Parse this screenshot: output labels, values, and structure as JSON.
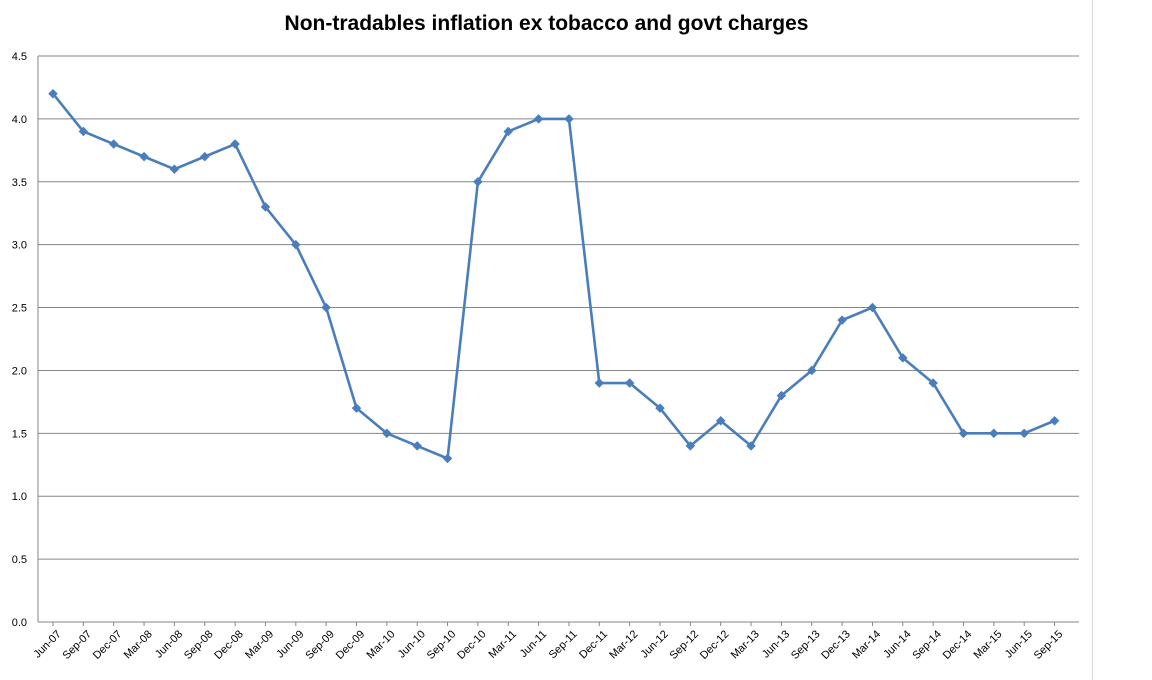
{
  "chart_data": {
    "type": "line",
    "title": "Non-tradables inflation ex tobacco and govt charges",
    "xlabel": "",
    "ylabel": "",
    "ylim": [
      0,
      4.5
    ],
    "yticks": [
      "0.0",
      "0.5",
      "1.0",
      "1.5",
      "2.0",
      "2.5",
      "3.0",
      "3.5",
      "4.0",
      "4.5"
    ],
    "grid": "horizontal",
    "legend": "none",
    "categories": [
      "Jun-07",
      "Sep-07",
      "Dec-07",
      "Mar-08",
      "Jun-08",
      "Sep-08",
      "Dec-08",
      "Mar-09",
      "Jun-09",
      "Sep-09",
      "Dec-09",
      "Mar-10",
      "Jun-10",
      "Sep-10",
      "Dec-10",
      "Mar-11",
      "Jun-11",
      "Sep-11",
      "Dec-11",
      "Mar-12",
      "Jun-12",
      "Sep-12",
      "Dec-12",
      "Mar-13",
      "Jun-13",
      "Sep-13",
      "Dec-13",
      "Mar-14",
      "Jun-14",
      "Sep-14",
      "Dec-14",
      "Mar-15",
      "Jun-15",
      "Sep-15"
    ],
    "series": [
      {
        "color": "#4a7ebb",
        "values": [
          4.2,
          3.9,
          3.8,
          3.7,
          3.6,
          3.7,
          3.8,
          3.3,
          3.0,
          2.5,
          1.7,
          1.5,
          1.4,
          1.3,
          3.5,
          3.9,
          4.0,
          4.0,
          1.9,
          1.9,
          1.7,
          1.4,
          1.6,
          1.4,
          1.8,
          2.0,
          2.4,
          2.5,
          2.1,
          1.9,
          1.5,
          1.5,
          1.5,
          1.6
        ]
      }
    ]
  }
}
